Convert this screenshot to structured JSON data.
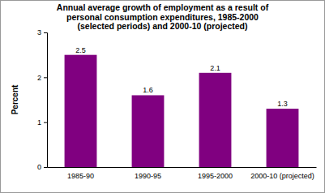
{
  "chart_data": {
    "type": "bar",
    "title": "Annual average growth of employment as a result of\npersonal consumption expenditures, 1985-2000\n(selected periods) and 2000-10 (projected)",
    "y_label": "Percent",
    "categories": [
      "1985-90",
      "1990-95",
      "1995-2000",
      "2000-10 (projected)"
    ],
    "values": [
      2.5,
      1.6,
      2.1,
      1.3
    ],
    "color": "#800080",
    "ylim": [
      0,
      3
    ],
    "yticks": [
      0,
      1,
      2,
      3
    ],
    "grid": false,
    "data_labels": true
  }
}
